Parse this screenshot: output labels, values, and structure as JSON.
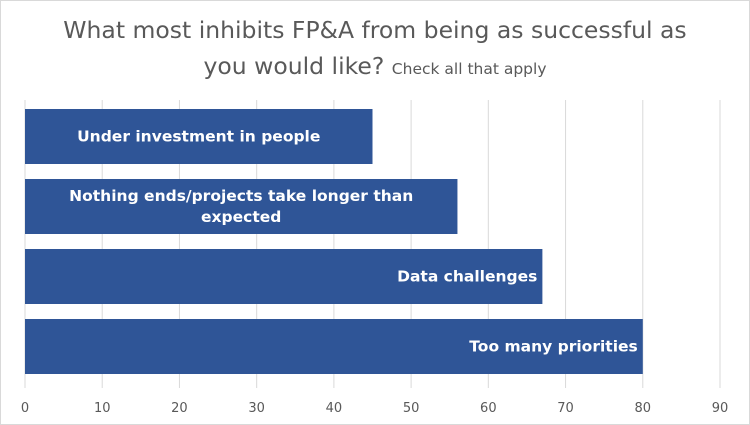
{
  "chart_data": {
    "type": "bar",
    "orientation": "horizontal",
    "title": "What most inhibits FP&A from being as successful as you would like?",
    "title_line1": "What most inhibits FP&A from being as successful as",
    "title_line2": "you would like?",
    "subtitle": "Check all that apply",
    "categories": [
      "Under investment in people",
      "Nothing ends/projects take longer than expected",
      "Data challenges",
      "Too many priorities"
    ],
    "category_lines": [
      [
        "Under investment in people"
      ],
      [
        "Nothing ends/projects take longer than",
        "expected"
      ],
      [
        "Data challenges"
      ],
      [
        "Too many priorities"
      ]
    ],
    "label_align": [
      "center",
      "center",
      "end",
      "end"
    ],
    "values": [
      45,
      56,
      67,
      80
    ],
    "xlim": [
      0,
      90
    ],
    "xticks": [
      0,
      10,
      20,
      30,
      40,
      50,
      60,
      70,
      80,
      90
    ],
    "grid": true,
    "legend": "none",
    "bar_color": "#2f5597",
    "grid_color": "#d9d9d9",
    "text_color": "#595959"
  }
}
